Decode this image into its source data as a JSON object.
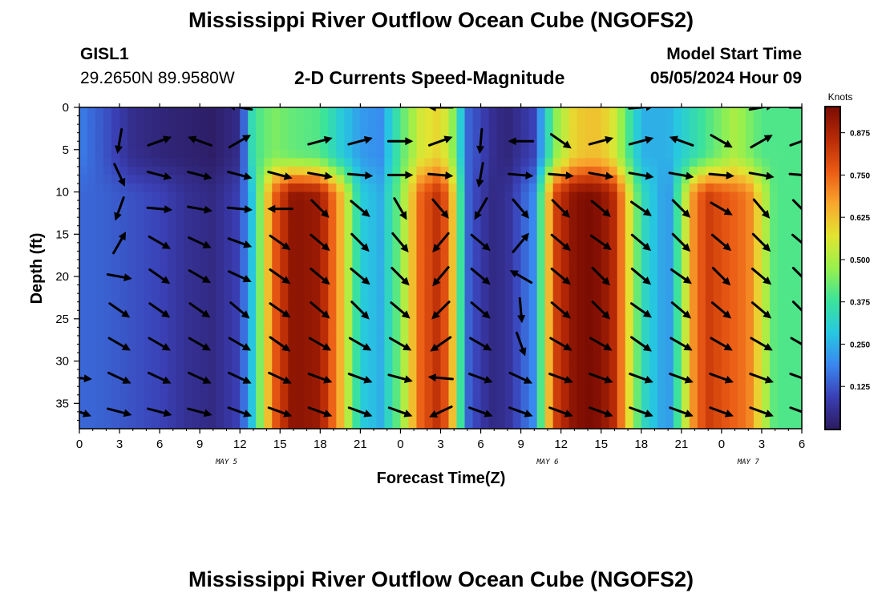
{
  "header": {
    "title": "Mississippi River Outflow Ocean Cube (NGOFS2)",
    "station_id": "GISL1",
    "station_coords": "29.2650N  89.9580W",
    "subtitle": "2-D Currents Speed-Magnitude",
    "model_start_label": "Model Start Time",
    "model_start_value": "05/05/2024 Hour 09"
  },
  "footer": {
    "title": "Mississippi River Outflow Ocean Cube (NGOFS2)"
  },
  "colors": {
    "frame": "#000000",
    "arrow": "#000000",
    "colormap": [
      "#2c1a5e",
      "#3a3fb4",
      "#3a86f0",
      "#27c8e0",
      "#3ce39a",
      "#98f04c",
      "#e2e431",
      "#f9a62d",
      "#ea5a14",
      "#b82a06",
      "#7a0c02"
    ]
  },
  "chart_data": {
    "type": "heatmap",
    "title": "2-D Currents Speed-Magnitude",
    "xlabel": "Forecast Time(Z)",
    "ylabel": "Depth (ft)",
    "x_range_hours": [
      0,
      54
    ],
    "ylim": [
      0,
      38
    ],
    "x_tick_labels": [
      "0",
      "3",
      "6",
      "9",
      "12",
      "15",
      "18",
      "21",
      "0",
      "3",
      "6",
      "9",
      "12",
      "15",
      "18",
      "21",
      "0",
      "3",
      "6"
    ],
    "y_ticks": [
      0,
      5,
      10,
      15,
      20,
      25,
      30,
      35
    ],
    "date_labels": [
      {
        "hour": 11,
        "text": "MAY 5"
      },
      {
        "hour": 35,
        "text": "MAY 6"
      },
      {
        "hour": 50,
        "text": "MAY 7"
      }
    ],
    "colorbar": {
      "label": "Knots",
      "min": 0.0,
      "max": 0.95,
      "ticks": [
        "0.125",
        "0.250",
        "0.375",
        "0.500",
        "0.625",
        "0.750",
        "0.875"
      ],
      "tick_values": [
        0.125,
        0.25,
        0.375,
        0.5,
        0.625,
        0.75,
        0.875
      ]
    },
    "speed_profile": {
      "hours": [
        0,
        2,
        4,
        6,
        8,
        10,
        12,
        13,
        14.5,
        16,
        18,
        19.5,
        21,
        22.5,
        24,
        25.5,
        27,
        28,
        29,
        30,
        31,
        32,
        34,
        35.5,
        37,
        38,
        39,
        40,
        42,
        44,
        45,
        46,
        47,
        48,
        49,
        50,
        51,
        52,
        54
      ],
      "surface": [
        0.18,
        0.12,
        0.05,
        0.03,
        0.02,
        0.01,
        0.05,
        0.38,
        0.45,
        0.42,
        0.4,
        0.3,
        0.22,
        0.2,
        0.4,
        0.55,
        0.6,
        0.45,
        0.15,
        0.1,
        0.05,
        0.03,
        0.1,
        0.45,
        0.6,
        0.62,
        0.62,
        0.55,
        0.25,
        0.25,
        0.3,
        0.35,
        0.4,
        0.45,
        0.5,
        0.45,
        0.4,
        0.4,
        0.4
      ],
      "deep": [
        0.15,
        0.14,
        0.12,
        0.1,
        0.06,
        0.04,
        0.1,
        0.3,
        0.75,
        0.93,
        0.9,
        0.65,
        0.3,
        0.25,
        0.45,
        0.75,
        0.86,
        0.6,
        0.15,
        0.08,
        0.04,
        0.06,
        0.2,
        0.8,
        0.93,
        0.95,
        0.93,
        0.85,
        0.35,
        0.2,
        0.45,
        0.72,
        0.82,
        0.78,
        0.75,
        0.72,
        0.55,
        0.4,
        0.4
      ]
    },
    "arrow_columns_hours": [
      0,
      3,
      6,
      9,
      12,
      15,
      18,
      21,
      24,
      27,
      30,
      33,
      36,
      39,
      42,
      45,
      48,
      51,
      54
    ],
    "arrow_depths_ft": [
      0,
      4,
      8,
      12,
      16,
      20,
      24,
      28,
      32,
      36
    ],
    "arrow_rows": [
      [
        null,
        null,
        null,
        null,
        190,
        null,
        null,
        null,
        null,
        180,
        null,
        null,
        null,
        null,
        355,
        null,
        null,
        350,
        0
      ],
      [
        null,
        100,
        340,
        200,
        330,
        null,
        345,
        345,
        360,
        340,
        95,
        180,
        35,
        345,
        345,
        200,
        30,
        330,
        340
      ],
      [
        null,
        65,
        15,
        15,
        15,
        15,
        10,
        5,
        0,
        5,
        100,
        5,
        5,
        10,
        10,
        10,
        5,
        10,
        5
      ],
      [
        null,
        110,
        5,
        10,
        5,
        180,
        45,
        40,
        60,
        50,
        120,
        50,
        45,
        40,
        35,
        45,
        30,
        50,
        45
      ],
      [
        null,
        300,
        30,
        25,
        20,
        35,
        40,
        45,
        50,
        130,
        40,
        310,
        40,
        35,
        40,
        45,
        40,
        45,
        40
      ],
      [
        null,
        10,
        35,
        30,
        25,
        35,
        40,
        40,
        45,
        130,
        40,
        210,
        40,
        45,
        40,
        35,
        45,
        40,
        45
      ],
      [
        null,
        35,
        35,
        35,
        40,
        35,
        40,
        45,
        40,
        135,
        40,
        85,
        40,
        45,
        35,
        40,
        40,
        40,
        45
      ],
      [
        null,
        30,
        30,
        30,
        30,
        35,
        30,
        30,
        30,
        145,
        30,
        70,
        30,
        30,
        35,
        30,
        30,
        30,
        30
      ],
      [
        5,
        25,
        25,
        25,
        25,
        25,
        20,
        20,
        15,
        185,
        20,
        25,
        20,
        20,
        20,
        20,
        20,
        20,
        20
      ],
      [
        20,
        15,
        15,
        15,
        20,
        20,
        20,
        20,
        20,
        155,
        20,
        20,
        20,
        20,
        20,
        20,
        20,
        20,
        20
      ]
    ]
  }
}
